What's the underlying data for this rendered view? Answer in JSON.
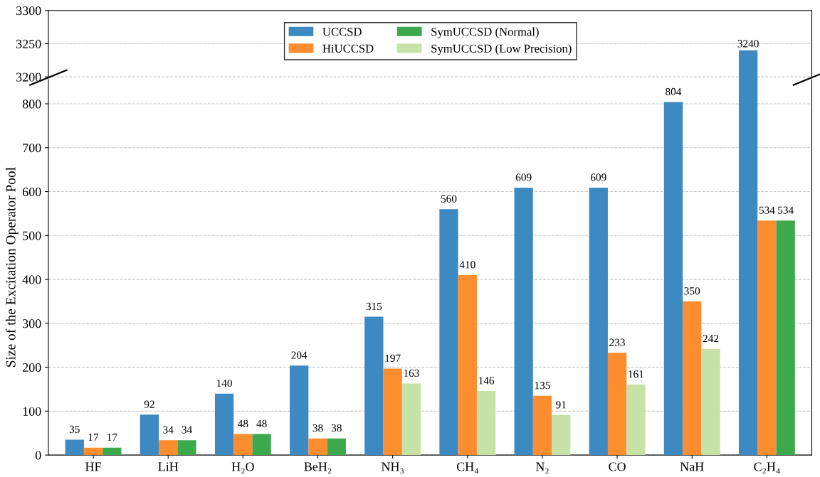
{
  "chart_data": [
    {
      "type": "bar",
      "categories": [
        null,
        null,
        null,
        null,
        null,
        null,
        null,
        null,
        null,
        null
      ],
      "series": [
        {
          "color": "#3d89c1",
          "values": [
            null,
            null,
            null,
            null,
            null,
            null,
            null,
            null,
            null,
            3240
          ]
        }
      ],
      "ylim": [
        3198,
        3300
      ],
      "yticks": [
        3200,
        3250,
        3300
      ],
      "grid": "y",
      "line_style": "dashed",
      "data_labels": true,
      "tick_labels": "y"
    },
    {
      "type": "bar",
      "categories": [
        "HF",
        "LiH",
        "H₂O",
        "BeH₂",
        "NH₃",
        "CH₄",
        "N₂",
        "CO",
        "NaH",
        "C₂H₄"
      ],
      "ylabel": "Size of the Excitation Operator Pool",
      "series": [
        {
          "name": "UCCSD",
          "color": "#3d89c1",
          "values": [
            35,
            92,
            140,
            204,
            315,
            560,
            609,
            609,
            804,
            null
          ]
        },
        {
          "name": "HiUCCSD",
          "color": "#fd8d2f",
          "values": [
            17,
            34,
            48,
            38,
            197,
            410,
            135,
            233,
            350,
            534
          ]
        },
        {
          "name": "SymUCCSD (Normal)",
          "color": "#3ba94c",
          "values": [
            17,
            34,
            48,
            38,
            null,
            null,
            null,
            null,
            null,
            534
          ]
        },
        {
          "name": "SymUCCSD (Low Precision)",
          "color": "#c6e2a7",
          "values": [
            null,
            null,
            null,
            null,
            163,
            146,
            91,
            161,
            242,
            null
          ]
        }
      ],
      "ylim": [
        0,
        855
      ],
      "yticks": [
        0,
        100,
        200,
        300,
        400,
        500,
        600,
        700,
        800
      ],
      "grid": "y",
      "line_style": "dashed",
      "legend": "top",
      "data_labels": true
    }
  ]
}
